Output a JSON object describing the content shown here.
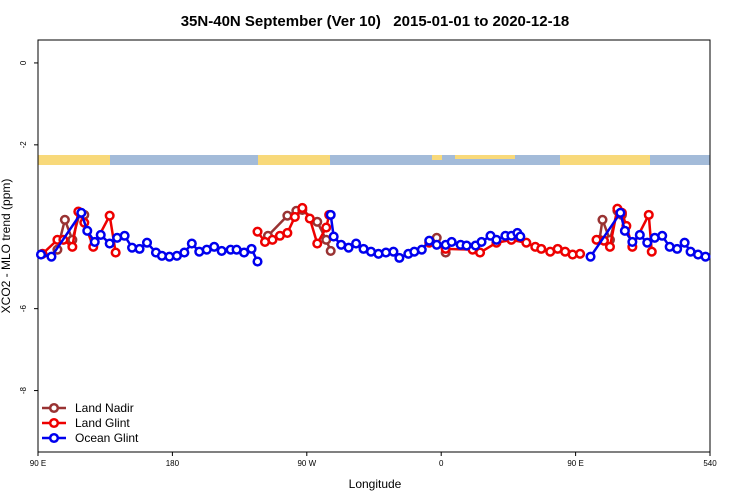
{
  "chart_data": {
    "type": "line",
    "title": "35N-40N September (Ver 10)   2015-01-01 to 2020-12-18",
    "x_label": "Longitude",
    "y_label": "XCO2 - MLO trend (ppm)",
    "xlim": [
      90,
      540
    ],
    "ylim": [
      -9.5,
      0.56
    ],
    "xticks": [
      {
        "value": 90,
        "label": "90 E"
      },
      180,
      {
        "value": 270,
        "label": "90 W"
      },
      {
        "value": 360,
        "label": "0"
      },
      {
        "value": 450,
        "label": "90 E"
      },
      540
    ],
    "yticks": [
      0,
      -2,
      -6,
      -8
    ],
    "legend": "bottom-left",
    "series": [
      {
        "name": "Land Nadir",
        "color": "#993333",
        "x": [
          103,
          108,
          113,
          118,
          121,
          180,
          244,
          257,
          263,
          267,
          277,
          283,
          286,
          320,
          357,
          363,
          420,
          466,
          468,
          473,
          478,
          481
        ],
        "values": [
          -4.56,
          -3.83,
          -4.32,
          -3.66,
          -3.71,
          null,
          -4.22,
          -3.73,
          -3.61,
          -3.59,
          -3.88,
          -4.32,
          -4.59,
          null,
          -4.27,
          -4.63,
          null,
          -4.32,
          -3.83,
          -4.32,
          -3.61,
          -3.71
        ]
      },
      {
        "name": "Land Glint",
        "color": "#ee0000",
        "x": [
          93,
          103,
          107,
          113,
          117,
          121,
          127,
          138,
          142,
          190,
          237,
          242,
          247,
          252,
          257,
          262,
          267,
          272,
          277,
          283,
          285,
          320,
          352,
          363,
          381,
          386,
          397,
          407,
          417,
          423,
          427,
          433,
          438,
          443,
          448,
          453,
          458,
          464,
          469,
          473,
          478,
          481,
          484,
          488,
          499,
          501
        ],
        "values": [
          -4.66,
          -4.32,
          -4.32,
          -4.49,
          -3.63,
          -3.9,
          -4.49,
          -3.73,
          -4.63,
          null,
          -4.12,
          -4.37,
          -4.32,
          -4.22,
          -4.15,
          -3.76,
          -3.54,
          -3.8,
          -4.41,
          -4.02,
          -3.71,
          null,
          -4.39,
          -4.54,
          -4.56,
          -4.63,
          -4.39,
          -4.32,
          -4.39,
          -4.49,
          -4.54,
          -4.61,
          -4.54,
          -4.61,
          -4.68,
          -4.66,
          null,
          -4.32,
          -4.34,
          -4.49,
          -3.56,
          -3.66,
          -3.98,
          -4.49,
          -3.71,
          -4.61
        ]
      },
      {
        "name": "Ocean Glint",
        "color": "#0000ee",
        "x": [
          92,
          99,
          119,
          123,
          128,
          132,
          138,
          143,
          148,
          153,
          158,
          163,
          169,
          173,
          178,
          183,
          188,
          193,
          198,
          203,
          208,
          213,
          219,
          223,
          228,
          233,
          237,
          262,
          286,
          288,
          293,
          298,
          303,
          308,
          313,
          318,
          323,
          328,
          332,
          338,
          342,
          347,
          352,
          357,
          363,
          367,
          373,
          377,
          383,
          387,
          393,
          397,
          403,
          407,
          411,
          413,
          440,
          460,
          480,
          483,
          488,
          493,
          498,
          503,
          508,
          513,
          518,
          523,
          527,
          532,
          537
        ],
        "values": [
          -4.68,
          -4.73,
          -3.66,
          -4.1,
          -4.37,
          -4.2,
          -4.41,
          -4.27,
          -4.22,
          -4.51,
          -4.54,
          -4.39,
          -4.63,
          -4.71,
          -4.73,
          -4.71,
          -4.63,
          -4.41,
          -4.61,
          -4.56,
          -4.49,
          -4.59,
          -4.56,
          -4.56,
          -4.63,
          -4.54,
          -4.85,
          null,
          -3.71,
          -4.24,
          -4.44,
          -4.51,
          -4.41,
          -4.54,
          -4.61,
          -4.66,
          -4.63,
          -4.61,
          -4.76,
          -4.66,
          -4.61,
          -4.56,
          -4.34,
          -4.44,
          -4.44,
          -4.37,
          -4.44,
          -4.46,
          -4.46,
          -4.37,
          -4.22,
          -4.32,
          -4.22,
          -4.22,
          -4.15,
          -4.24,
          null,
          -4.73,
          -3.66,
          -4.1,
          -4.37,
          -4.2,
          -4.39,
          -4.27,
          -4.22,
          -4.49,
          -4.54,
          -4.39,
          -4.61,
          -4.68,
          -4.73
        ]
      }
    ]
  }
}
